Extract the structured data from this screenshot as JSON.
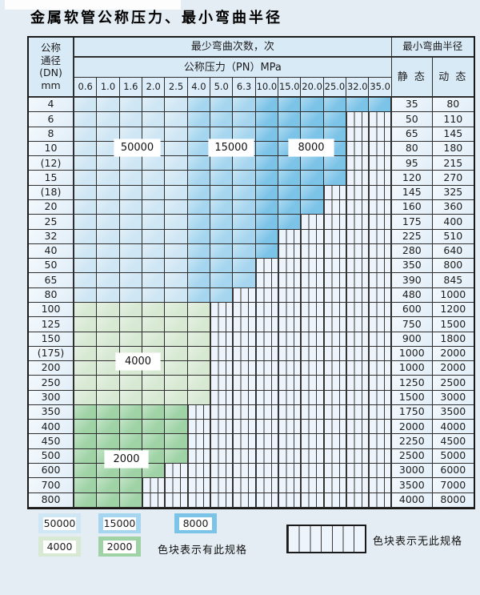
{
  "title": "金属软管公称压力、最小弯曲半径",
  "table": {
    "header": {
      "dn_lines": [
        "公称",
        "通径",
        "(DN)",
        "mm"
      ],
      "bend_cycles_label": "最少弯曲次数，次",
      "pressure_label": "公称压力（PN）MPa",
      "radius_label": "最小弯曲半径",
      "static_label": "静 态",
      "dynamic_label": "动 态",
      "pressure_columns": [
        "0.6",
        "1.0",
        "1.6",
        "2.0",
        "2.5",
        "4.0",
        "5.0",
        "6.3",
        "10.0",
        "15.0",
        "20.0",
        "25.0",
        "32.0",
        "35.0"
      ]
    },
    "rows": [
      {
        "dn": "4",
        "palette": "blue",
        "last_col": 13,
        "static": "35",
        "dynamic": "80"
      },
      {
        "dn": "6",
        "palette": "blue",
        "last_col": 11,
        "static": "50",
        "dynamic": "110"
      },
      {
        "dn": "8",
        "palette": "blue",
        "last_col": 11,
        "static": "65",
        "dynamic": "145"
      },
      {
        "dn": "10",
        "palette": "blue",
        "last_col": 11,
        "static": "80",
        "dynamic": "180"
      },
      {
        "dn": "(12)",
        "palette": "blue",
        "last_col": 11,
        "static": "95",
        "dynamic": "215"
      },
      {
        "dn": "15",
        "palette": "blue",
        "last_col": 11,
        "static": "120",
        "dynamic": "270"
      },
      {
        "dn": "(18)",
        "palette": "blue",
        "last_col": 10,
        "static": "145",
        "dynamic": "325"
      },
      {
        "dn": "20",
        "palette": "blue",
        "last_col": 10,
        "static": "160",
        "dynamic": "360"
      },
      {
        "dn": "25",
        "palette": "blue",
        "last_col": 9,
        "static": "175",
        "dynamic": "400"
      },
      {
        "dn": "32",
        "palette": "blue",
        "last_col": 8,
        "static": "225",
        "dynamic": "510"
      },
      {
        "dn": "40",
        "palette": "blue",
        "last_col": 8,
        "static": "280",
        "dynamic": "640"
      },
      {
        "dn": "50",
        "palette": "blue",
        "last_col": 7,
        "static": "350",
        "dynamic": "800"
      },
      {
        "dn": "65",
        "palette": "blue",
        "last_col": 7,
        "static": "390",
        "dynamic": "845"
      },
      {
        "dn": "80",
        "palette": "blue",
        "last_col": 6,
        "static": "480",
        "dynamic": "1000"
      },
      {
        "dn": "100",
        "palette": "green-light",
        "last_col": 5,
        "static": "600",
        "dynamic": "1200"
      },
      {
        "dn": "125",
        "palette": "green-light",
        "last_col": 5,
        "static": "750",
        "dynamic": "1500"
      },
      {
        "dn": "150",
        "palette": "green-light",
        "last_col": 5,
        "static": "900",
        "dynamic": "1800"
      },
      {
        "dn": "(175)",
        "palette": "green-light",
        "last_col": 5,
        "static": "1000",
        "dynamic": "2000"
      },
      {
        "dn": "200",
        "palette": "green-light",
        "last_col": 5,
        "static": "1000",
        "dynamic": "2000"
      },
      {
        "dn": "250",
        "palette": "green-light",
        "last_col": 5,
        "static": "1250",
        "dynamic": "2500"
      },
      {
        "dn": "300",
        "palette": "green-light",
        "last_col": 5,
        "static": "1500",
        "dynamic": "3000"
      },
      {
        "dn": "350",
        "palette": "green-dark",
        "last_col": 4,
        "static": "1750",
        "dynamic": "3500"
      },
      {
        "dn": "400",
        "palette": "green-dark",
        "last_col": 4,
        "static": "2000",
        "dynamic": "4000"
      },
      {
        "dn": "450",
        "palette": "green-dark",
        "last_col": 4,
        "static": "2250",
        "dynamic": "4500"
      },
      {
        "dn": "500",
        "palette": "green-dark",
        "last_col": 4,
        "static": "2500",
        "dynamic": "5000"
      },
      {
        "dn": "600",
        "palette": "green-dark",
        "last_col": 3,
        "static": "3000",
        "dynamic": "6000"
      },
      {
        "dn": "700",
        "palette": "green-dark",
        "last_col": 2,
        "static": "3500",
        "dynamic": "7000"
      },
      {
        "dn": "800",
        "palette": "green-dark",
        "last_col": 2,
        "static": "4000",
        "dynamic": "8000"
      }
    ]
  },
  "overlay_labels": {
    "blue_50000": "50000",
    "blue_15000": "15000",
    "blue_8000": "8000",
    "green_4000": "4000",
    "green_2000": "2000"
  },
  "legend": {
    "items": [
      {
        "value": "50000",
        "color": "#cfe6f4"
      },
      {
        "value": "15000",
        "color": "#a6d6ef"
      },
      {
        "value": "8000",
        "color": "#7cc3e8"
      },
      {
        "value": "4000",
        "color": "#d7e9d3"
      },
      {
        "value": "2000",
        "color": "#9fd3a6"
      }
    ],
    "has_spec_text": "色块表示有此规格",
    "no_spec_text": "色块表示无此规格"
  },
  "colors": {
    "blue_light": "#cfe6f4",
    "blue_mid": "#a6d6ef",
    "blue_dark": "#7cc3e8",
    "green_light": "#d7e9d3",
    "green_dark": "#9fd3a6",
    "hatch_bg": "#eef4fb"
  }
}
